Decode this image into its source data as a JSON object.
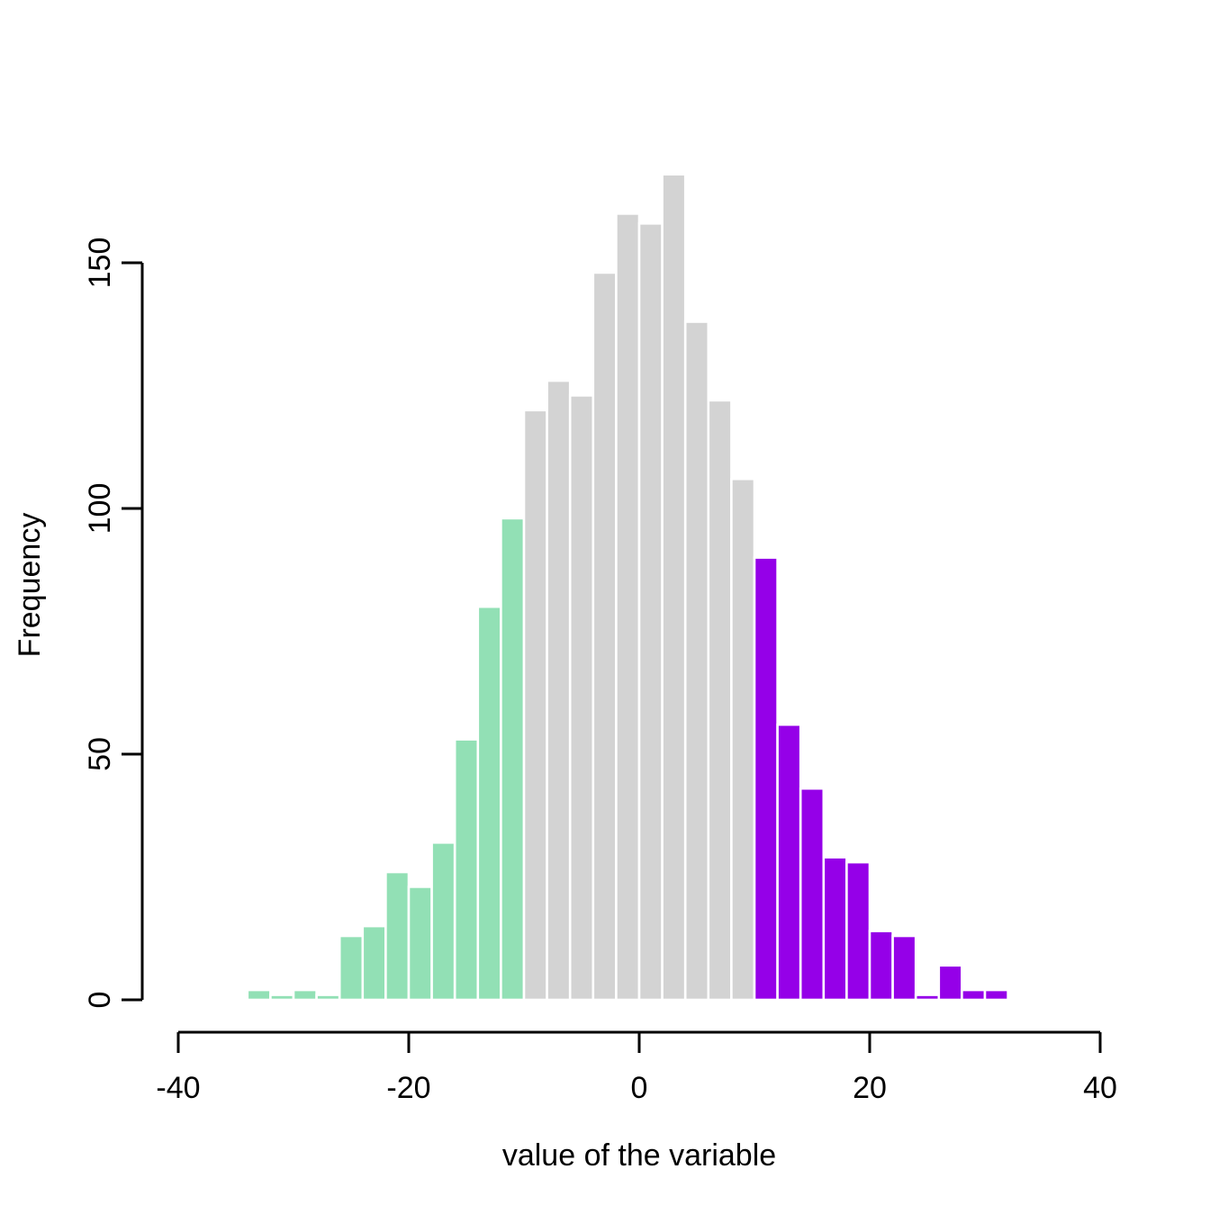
{
  "chart_data": {
    "type": "bar",
    "subtype": "histogram",
    "title": "",
    "xlabel": "value of the variable",
    "ylabel": "Frequency",
    "xlim": [
      -40,
      40
    ],
    "ylim": [
      0,
      150
    ],
    "x_ticks": [
      -40,
      -20,
      0,
      20,
      40
    ],
    "y_ticks": [
      0,
      50,
      100,
      150
    ],
    "grid": false,
    "legend": "none",
    "bin_width": 2,
    "axis_color": "#000000",
    "text_color": "#000000",
    "bar_border_color": "#ffffff",
    "segment_colors": {
      "left_tail_green": "#92E0B5",
      "center_gray": "#D3D3D3",
      "right_tail_purple": "#9500E8"
    },
    "bins": [
      {
        "start": -34,
        "end": -32,
        "count": 2,
        "group": "left_tail_green",
        "color": "#92E0B5"
      },
      {
        "start": -32,
        "end": -30,
        "count": 1,
        "group": "left_tail_green",
        "color": "#92E0B5"
      },
      {
        "start": -30,
        "end": -28,
        "count": 2,
        "group": "left_tail_green",
        "color": "#92E0B5"
      },
      {
        "start": -28,
        "end": -26,
        "count": 1,
        "group": "left_tail_green",
        "color": "#92E0B5"
      },
      {
        "start": -26,
        "end": -24,
        "count": 13,
        "group": "left_tail_green",
        "color": "#92E0B5"
      },
      {
        "start": -24,
        "end": -22,
        "count": 15,
        "group": "left_tail_green",
        "color": "#92E0B5"
      },
      {
        "start": -22,
        "end": -20,
        "count": 26,
        "group": "left_tail_green",
        "color": "#92E0B5"
      },
      {
        "start": -20,
        "end": -18,
        "count": 23,
        "group": "left_tail_green",
        "color": "#92E0B5"
      },
      {
        "start": -18,
        "end": -16,
        "count": 32,
        "group": "left_tail_green",
        "color": "#92E0B5"
      },
      {
        "start": -16,
        "end": -14,
        "count": 53,
        "group": "left_tail_green",
        "color": "#92E0B5"
      },
      {
        "start": -14,
        "end": -12,
        "count": 80,
        "group": "left_tail_green",
        "color": "#92E0B5"
      },
      {
        "start": -12,
        "end": -10,
        "count": 98,
        "group": "left_tail_green",
        "color": "#92E0B5"
      },
      {
        "start": -10,
        "end": -8,
        "count": 120,
        "group": "center_gray",
        "color": "#D3D3D3"
      },
      {
        "start": -8,
        "end": -6,
        "count": 126,
        "group": "center_gray",
        "color": "#D3D3D3"
      },
      {
        "start": -6,
        "end": -4,
        "count": 123,
        "group": "center_gray",
        "color": "#D3D3D3"
      },
      {
        "start": -4,
        "end": -2,
        "count": 148,
        "group": "center_gray",
        "color": "#D3D3D3"
      },
      {
        "start": -2,
        "end": 0,
        "count": 160,
        "group": "center_gray",
        "color": "#D3D3D3"
      },
      {
        "start": 0,
        "end": 2,
        "count": 158,
        "group": "center_gray",
        "color": "#D3D3D3"
      },
      {
        "start": 2,
        "end": 4,
        "count": 168,
        "group": "center_gray",
        "color": "#D3D3D3"
      },
      {
        "start": 4,
        "end": 6,
        "count": 138,
        "group": "center_gray",
        "color": "#D3D3D3"
      },
      {
        "start": 6,
        "end": 8,
        "count": 122,
        "group": "center_gray",
        "color": "#D3D3D3"
      },
      {
        "start": 8,
        "end": 10,
        "count": 106,
        "group": "center_gray",
        "color": "#D3D3D3"
      },
      {
        "start": 10,
        "end": 12,
        "count": 90,
        "group": "right_tail_purple",
        "color": "#9500E8"
      },
      {
        "start": 12,
        "end": 14,
        "count": 56,
        "group": "right_tail_purple",
        "color": "#9500E8"
      },
      {
        "start": 14,
        "end": 16,
        "count": 43,
        "group": "right_tail_purple",
        "color": "#9500E8"
      },
      {
        "start": 16,
        "end": 18,
        "count": 29,
        "group": "right_tail_purple",
        "color": "#9500E8"
      },
      {
        "start": 18,
        "end": 20,
        "count": 28,
        "group": "right_tail_purple",
        "color": "#9500E8"
      },
      {
        "start": 20,
        "end": 22,
        "count": 14,
        "group": "right_tail_purple",
        "color": "#9500E8"
      },
      {
        "start": 22,
        "end": 24,
        "count": 13,
        "group": "right_tail_purple",
        "color": "#9500E8"
      },
      {
        "start": 24,
        "end": 26,
        "count": 1,
        "group": "right_tail_purple",
        "color": "#9500E8"
      },
      {
        "start": 26,
        "end": 28,
        "count": 7,
        "group": "right_tail_purple",
        "color": "#9500E8"
      },
      {
        "start": 28,
        "end": 30,
        "count": 2,
        "group": "right_tail_purple",
        "color": "#9500E8"
      },
      {
        "start": 30,
        "end": 32,
        "count": 2,
        "group": "right_tail_purple",
        "color": "#9500E8"
      }
    ]
  }
}
